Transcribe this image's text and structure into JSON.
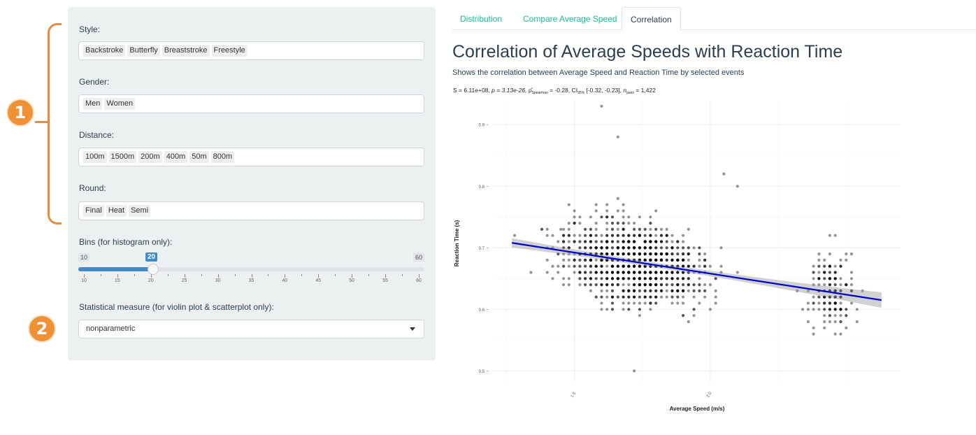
{
  "annotations": {
    "badge1": "1",
    "badge2": "2"
  },
  "sidebar": {
    "style": {
      "label": "Style:",
      "tags": [
        "Backstroke",
        "Butterfly",
        "Breaststroke",
        "Freestyle"
      ]
    },
    "gender": {
      "label": "Gender:",
      "tags": [
        "Men",
        "Women"
      ]
    },
    "distance": {
      "label": "Distance:",
      "tags": [
        "100m",
        "1500m",
        "200m",
        "400m",
        "50m",
        "800m"
      ]
    },
    "round": {
      "label": "Round:",
      "tags": [
        "Final",
        "Heat",
        "Semi"
      ]
    },
    "bins": {
      "label": "Bins (for histogram only):",
      "min": "10",
      "max": "60",
      "value": "20",
      "tick_labels": [
        "10",
        "15",
        "20",
        "25",
        "30",
        "35",
        "40",
        "45",
        "50",
        "55",
        "60"
      ]
    },
    "stat": {
      "label": "Statistical measure (for violin plot & scatterplot only):",
      "value": "nonparametric"
    }
  },
  "tabs": [
    "Distribution",
    "Compare Average Speed",
    "Correlation"
  ],
  "active_tab": "Correlation",
  "main": {
    "title": "Correlation of Average Speeds with Reaction Time",
    "subtitle": "Shows the correlation between Average Speed and Reaction Time by selected events"
  },
  "colors": {
    "accent": "#18bc9c",
    "slider": "#428bca",
    "regression": "#0000cc",
    "badge": "#f09136"
  },
  "chart_data": {
    "type": "scatter",
    "stats_text": {
      "s": "S = 6.11e+08, ",
      "p": "p = 3.13e-26, ",
      "rho_symbol": "ρ̂",
      "rho_sub": "Spearman",
      "rho": " = -0.28, CI",
      "ci_sub": "95%",
      "ci": " [-0.32, -0.23], ",
      "n_symbol": "n",
      "n_sub": "pairs",
      "n": " = 1,422"
    },
    "xlabel": "Average Speed (m/s)",
    "ylabel": "Reaction Time (s)",
    "xticks": [
      "1.5",
      "2.0"
    ],
    "yticks": [
      "0.5",
      "0.6",
      "0.7",
      "0.8",
      "0.9"
    ],
    "xlim": [
      1.2,
      2.7
    ],
    "ylim": [
      0.48,
      0.94
    ],
    "regression": {
      "x": [
        1.27,
        2.63
      ],
      "y": [
        0.708,
        0.615
      ]
    },
    "n_points": 1422,
    "grid": true
  }
}
